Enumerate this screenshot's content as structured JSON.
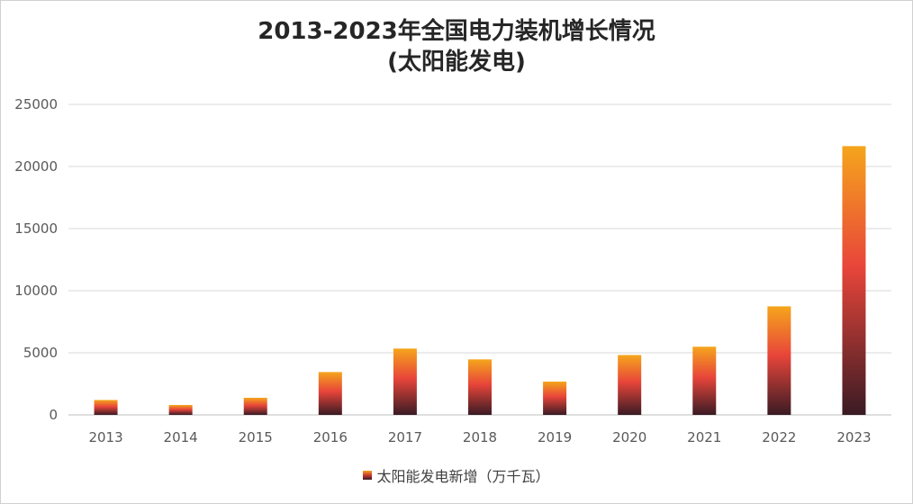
{
  "chart_data": {
    "type": "bar",
    "title": "2013-2023年全国电力装机增长情况",
    "subtitle": "(太阳能发电)",
    "xlabel": "",
    "ylabel": "",
    "categories": [
      "2013",
      "2014",
      "2015",
      "2016",
      "2017",
      "2018",
      "2019",
      "2020",
      "2021",
      "2022",
      "2023"
    ],
    "series": [
      {
        "name": "太阳能发电新增（万千瓦）",
        "values": [
          1200,
          800,
          1380,
          3450,
          5340,
          4470,
          2680,
          4820,
          5490,
          8740,
          21640
        ]
      }
    ],
    "ylim": [
      0,
      25000
    ],
    "yticks": [
      0,
      5000,
      10000,
      15000,
      20000,
      25000
    ],
    "grid": true,
    "legend_position": "bottom",
    "colors": {
      "bar_top": "#f5a51c",
      "bar_mid": "#e8453a",
      "bar_bottom": "#3a1b24",
      "grid": "#d9d9d9",
      "axis": "#bfbfbf",
      "text": "#595959"
    }
  }
}
